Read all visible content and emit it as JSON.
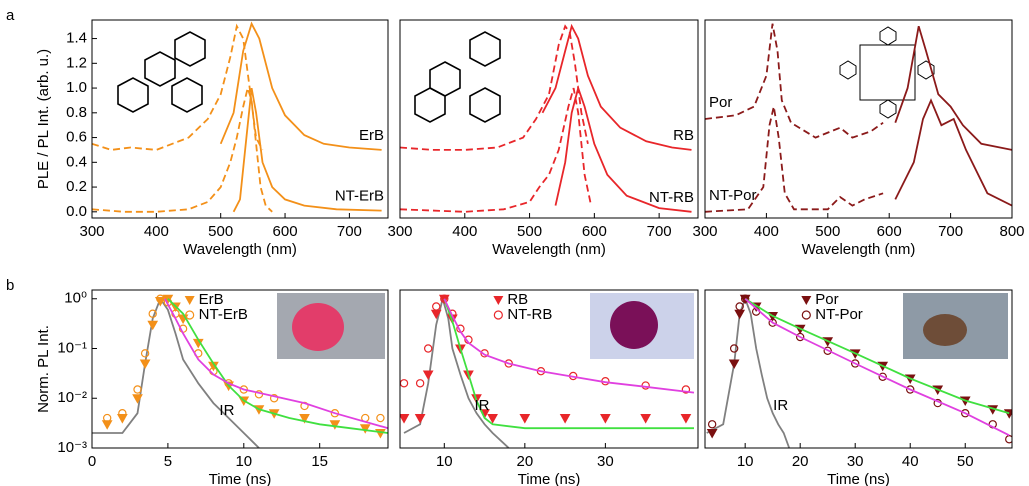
{
  "chart_data": [
    {
      "type": "line",
      "panel_label": "a",
      "xlabel": "Wavelength (nm)",
      "ylabel": "PLE / PL Int. (arb. u.)",
      "xlim": [
        300,
        760
      ],
      "ylim": [
        -0.05,
        1.55
      ],
      "xticks": [
        300,
        400,
        500,
        600,
        700
      ],
      "yticks": [
        {
          "value": 0,
          "label": "0.0"
        },
        0.2,
        0.4,
        0.6,
        0.8,
        {
          "value": 1,
          "label": "1.0"
        },
        1.2,
        1.4
      ],
      "legend": "right",
      "series": [
        {
          "color": "#f39019",
          "style": "dashed",
          "x": [
            300,
            330,
            360,
            400,
            450,
            480,
            500,
            515,
            525,
            535,
            545,
            555,
            565
          ],
          "values": [
            0.55,
            0.5,
            0.52,
            0.5,
            0.6,
            0.75,
            0.95,
            1.25,
            1.5,
            1.4,
            1.0,
            0.6,
            0.5
          ]
        },
        {
          "name": "ErB",
          "color": "#f39019",
          "style": "solid",
          "x": [
            500,
            520,
            535,
            548,
            560,
            580,
            600,
            630,
            660,
            700,
            750
          ],
          "values": [
            0.55,
            0.8,
            1.3,
            1.52,
            1.4,
            1.0,
            0.78,
            0.62,
            0.55,
            0.52,
            0.5
          ]
        },
        {
          "color": "#f39019",
          "style": "dashed",
          "x": [
            300,
            350,
            400,
            450,
            480,
            500,
            515,
            525,
            535,
            542,
            548,
            555,
            562,
            570,
            580
          ],
          "values": [
            0.02,
            0.0,
            0.0,
            0.02,
            0.08,
            0.2,
            0.4,
            0.6,
            0.85,
            1.0,
            0.9,
            0.55,
            0.2,
            0.05,
            0.0
          ]
        },
        {
          "name": "NT-ErB",
          "color": "#f39019",
          "style": "solid",
          "x": [
            520,
            530,
            540,
            548,
            555,
            565,
            580,
            600,
            630,
            680,
            750
          ],
          "values": [
            0.0,
            0.1,
            0.6,
            1.0,
            0.8,
            0.4,
            0.2,
            0.1,
            0.05,
            0.02,
            0.01
          ]
        }
      ]
    },
    {
      "type": "line",
      "xlabel": "Wavelength (nm)",
      "xlim": [
        300,
        760
      ],
      "ylim": [
        -0.05,
        1.55
      ],
      "xticks": [
        300,
        400,
        500,
        600,
        700
      ],
      "legend": "right",
      "series": [
        {
          "color": "#e8262a",
          "style": "dashed",
          "x": [
            300,
            350,
            400,
            450,
            490,
            510,
            530,
            545,
            555,
            562,
            570,
            580,
            590
          ],
          "values": [
            0.52,
            0.5,
            0.5,
            0.52,
            0.6,
            0.75,
            0.95,
            1.35,
            1.5,
            1.45,
            1.2,
            0.8,
            0.55
          ]
        },
        {
          "name": "RB",
          "color": "#e8262a",
          "style": "solid",
          "x": [
            520,
            540,
            555,
            565,
            575,
            590,
            610,
            640,
            680,
            720,
            750
          ],
          "values": [
            0.8,
            1.0,
            1.3,
            1.5,
            1.4,
            1.1,
            0.85,
            0.68,
            0.57,
            0.52,
            0.5
          ]
        },
        {
          "color": "#e8262a",
          "style": "dashed",
          "x": [
            300,
            400,
            460,
            500,
            515,
            530,
            545,
            560,
            568,
            575,
            585,
            595
          ],
          "values": [
            0.02,
            0.0,
            0.02,
            0.08,
            0.2,
            0.3,
            0.5,
            0.85,
            1.0,
            0.8,
            0.3,
            0.05
          ]
        },
        {
          "name": "NT-RB",
          "color": "#e8262a",
          "style": "solid",
          "x": [
            540,
            555,
            565,
            575,
            585,
            600,
            620,
            650,
            700,
            750
          ],
          "values": [
            0.05,
            0.4,
            0.8,
            1.0,
            0.85,
            0.55,
            0.3,
            0.13,
            0.03,
            0.0
          ]
        }
      ]
    },
    {
      "type": "line",
      "xlabel": "Wavelength (nm)",
      "xlim": [
        300,
        800
      ],
      "ylim": [
        -0.05,
        1.55
      ],
      "xticks": [
        300,
        400,
        500,
        600,
        700,
        800
      ],
      "legend": "left",
      "series": [
        {
          "name": "Por",
          "color": "#8b1a1a",
          "style": "dashed",
          "x": [
            300,
            350,
            380,
            400,
            410,
            418,
            425,
            440,
            480,
            520,
            540,
            570,
            590
          ],
          "values": [
            0.75,
            0.78,
            0.85,
            1.1,
            1.52,
            1.3,
            0.9,
            0.72,
            0.6,
            0.68,
            0.6,
            0.65,
            0.72
          ]
        },
        {
          "color": "#8b1a1a",
          "style": "solid",
          "x": [
            610,
            630,
            648,
            660,
            680,
            700,
            720,
            750,
            800
          ],
          "values": [
            0.72,
            1.0,
            1.5,
            1.3,
            0.95,
            0.85,
            0.7,
            0.55,
            0.5
          ]
        },
        {
          "name": "NT-Por",
          "color": "#8b1a1a",
          "style": "dashed",
          "x": [
            300,
            370,
            395,
            405,
            412,
            420,
            430,
            445,
            500,
            520,
            540,
            560,
            590
          ],
          "values": [
            0.0,
            0.02,
            0.2,
            0.7,
            0.85,
            0.6,
            0.15,
            0.02,
            0.02,
            0.12,
            0.05,
            0.1,
            0.15
          ]
        },
        {
          "color": "#8b1a1a",
          "style": "solid",
          "x": [
            610,
            640,
            655,
            668,
            685,
            705,
            725,
            760,
            800
          ],
          "values": [
            0.1,
            0.4,
            0.75,
            0.9,
            0.7,
            0.75,
            0.5,
            0.15,
            0.05
          ]
        }
      ]
    },
    {
      "type": "scatter",
      "panel_label": "b",
      "xlabel": "Time (ns)",
      "ylabel": "Norm. PL Int.",
      "log_y": true,
      "xlim": [
        0,
        19.5
      ],
      "ylim": [
        0.001,
        1.5
      ],
      "xticks": [
        0,
        5,
        10,
        15
      ],
      "yticks": [
        {
          "value": 1,
          "label": "10⁰"
        },
        {
          "value": 0.1,
          "label": "10⁻¹"
        },
        {
          "value": 0.01,
          "label": "10⁻²"
        },
        {
          "value": 0.001,
          "label": "10⁻³"
        }
      ],
      "series": [
        {
          "name": "IR",
          "color": "#808080",
          "style": "solid",
          "x": [
            0,
            2,
            3,
            3.5,
            4,
            4.5,
            5,
            5.5,
            6,
            7,
            8,
            9,
            10,
            11
          ],
          "values": [
            0.002,
            0.002,
            0.005,
            0.05,
            0.4,
            1.0,
            0.6,
            0.2,
            0.06,
            0.02,
            0.008,
            0.004,
            0.002,
            0.001
          ]
        },
        {
          "name": "ErB",
          "color": "#f39019",
          "marker": "triangle-down",
          "filled": true,
          "x": [
            1,
            2,
            3,
            3.5,
            4,
            4.5,
            5,
            5.5,
            6,
            7,
            8,
            9,
            10,
            11,
            12,
            14,
            16,
            18,
            19
          ],
          "values": [
            0.003,
            0.004,
            0.01,
            0.05,
            0.3,
            0.9,
            1.0,
            0.7,
            0.4,
            0.13,
            0.045,
            0.018,
            0.009,
            0.006,
            0.005,
            0.004,
            0.003,
            0.0025,
            0.002
          ]
        },
        {
          "name": "NT-ErB",
          "color": "#f39019",
          "marker": "circle",
          "filled": false,
          "x": [
            1,
            2,
            3,
            3.5,
            4,
            4.5,
            5,
            5.5,
            6,
            7,
            8,
            9,
            10,
            11,
            12,
            14,
            16,
            18,
            19
          ],
          "values": [
            0.004,
            0.005,
            0.015,
            0.08,
            0.5,
            1.0,
            0.85,
            0.5,
            0.25,
            0.08,
            0.035,
            0.02,
            0.015,
            0.012,
            0.01,
            0.007,
            0.005,
            0.004,
            0.004
          ]
        },
        {
          "color": "#40e040",
          "style": "solid",
          "x": [
            5,
            6,
            7,
            8,
            9,
            10,
            11,
            13,
            15,
            17,
            19.5
          ],
          "values": [
            1.0,
            0.5,
            0.15,
            0.05,
            0.018,
            0.009,
            0.006,
            0.004,
            0.003,
            0.0025,
            0.002
          ]
        },
        {
          "color": "#e040e0",
          "style": "solid",
          "x": [
            4.8,
            5.5,
            6,
            7,
            8,
            9,
            10,
            12,
            14,
            16,
            19.5
          ],
          "values": [
            1.0,
            0.4,
            0.2,
            0.06,
            0.03,
            0.02,
            0.015,
            0.011,
            0.008,
            0.005,
            0.0025
          ]
        }
      ]
    },
    {
      "type": "scatter",
      "xlabel": "Time (ns)",
      "log_y": true,
      "xlim": [
        4.5,
        41.5
      ],
      "ylim": [
        0.001,
        1.5
      ],
      "xticks": [
        10,
        20,
        30
      ],
      "series": [
        {
          "name": "IR",
          "color": "#808080",
          "style": "solid",
          "x": [
            5,
            7,
            8,
            9,
            9.8,
            10.5,
            11,
            12,
            13,
            14,
            15,
            16,
            18
          ],
          "values": [
            0.002,
            0.003,
            0.02,
            0.3,
            1.0,
            0.4,
            0.1,
            0.03,
            0.01,
            0.005,
            0.003,
            0.002,
            0.001
          ]
        },
        {
          "name": "RB",
          "color": "#e8262a",
          "marker": "triangle-down",
          "filled": true,
          "x": [
            5,
            7,
            8,
            9,
            10,
            11,
            12,
            13,
            14,
            15,
            16,
            20,
            25,
            30,
            35,
            40
          ],
          "values": [
            0.004,
            0.004,
            0.03,
            0.5,
            1.0,
            0.4,
            0.1,
            0.03,
            0.01,
            0.005,
            0.004,
            0.004,
            0.004,
            0.004,
            0.004,
            0.004
          ]
        },
        {
          "name": "NT-RB",
          "color": "#e8262a",
          "marker": "circle",
          "filled": false,
          "x": [
            5,
            7,
            8,
            9,
            10,
            11,
            12,
            13,
            15,
            18,
            22,
            26,
            30,
            35,
            40
          ],
          "values": [
            0.02,
            0.02,
            0.1,
            0.7,
            1.0,
            0.5,
            0.25,
            0.15,
            0.08,
            0.05,
            0.035,
            0.028,
            0.022,
            0.018,
            0.015
          ]
        },
        {
          "color": "#40e040",
          "style": "solid",
          "x": [
            10,
            11,
            12,
            13,
            14,
            15,
            16,
            20,
            30,
            41
          ],
          "values": [
            1.0,
            0.35,
            0.1,
            0.03,
            0.009,
            0.004,
            0.003,
            0.0025,
            0.0025,
            0.0025
          ]
        },
        {
          "color": "#e040e0",
          "style": "solid",
          "x": [
            10,
            11,
            12,
            13,
            15,
            18,
            22,
            26,
            30,
            35,
            41
          ],
          "values": [
            1.0,
            0.45,
            0.22,
            0.13,
            0.075,
            0.05,
            0.035,
            0.027,
            0.021,
            0.017,
            0.013
          ]
        }
      ]
    },
    {
      "type": "scatter",
      "xlabel": "Time (ns)",
      "log_y": true,
      "xlim": [
        2.7,
        58.5
      ],
      "ylim": [
        0.001,
        1.5
      ],
      "xticks": [
        10,
        20,
        30,
        40,
        50
      ],
      "series": [
        {
          "name": "IR",
          "color": "#808080",
          "style": "solid",
          "x": [
            3,
            6,
            8,
            9,
            10,
            11,
            12,
            13,
            14,
            15,
            16,
            17,
            18
          ],
          "values": [
            0.002,
            0.003,
            0.05,
            0.5,
            1.0,
            0.5,
            0.1,
            0.03,
            0.01,
            0.005,
            0.003,
            0.002,
            0.001
          ]
        },
        {
          "name": "Por",
          "color": "#7a1010",
          "marker": "triangle-down",
          "filled": true,
          "x": [
            4,
            8,
            9,
            10,
            12,
            15,
            20,
            25,
            30,
            35,
            40,
            45,
            50,
            55,
            58
          ],
          "values": [
            0.002,
            0.05,
            0.5,
            1.0,
            0.7,
            0.45,
            0.25,
            0.14,
            0.08,
            0.045,
            0.025,
            0.015,
            0.009,
            0.006,
            0.005
          ]
        },
        {
          "name": "NT-Por",
          "color": "#7a1010",
          "marker": "circle",
          "filled": false,
          "x": [
            4,
            8,
            9,
            10,
            12,
            15,
            20,
            25,
            30,
            35,
            40,
            45,
            50,
            55,
            58
          ],
          "values": [
            0.003,
            0.1,
            0.7,
            1.0,
            0.55,
            0.33,
            0.17,
            0.09,
            0.05,
            0.027,
            0.015,
            0.008,
            0.005,
            0.003,
            0.0015
          ]
        },
        {
          "color": "#40e040",
          "style": "solid",
          "x": [
            10,
            15,
            20,
            30,
            40,
            50,
            58
          ],
          "values": [
            1.0,
            0.45,
            0.25,
            0.08,
            0.025,
            0.009,
            0.005
          ]
        },
        {
          "color": "#e040e0",
          "style": "solid",
          "x": [
            10,
            15,
            20,
            30,
            40,
            50,
            58
          ],
          "values": [
            1.0,
            0.33,
            0.17,
            0.05,
            0.015,
            0.005,
            0.0018
          ]
        }
      ]
    }
  ]
}
